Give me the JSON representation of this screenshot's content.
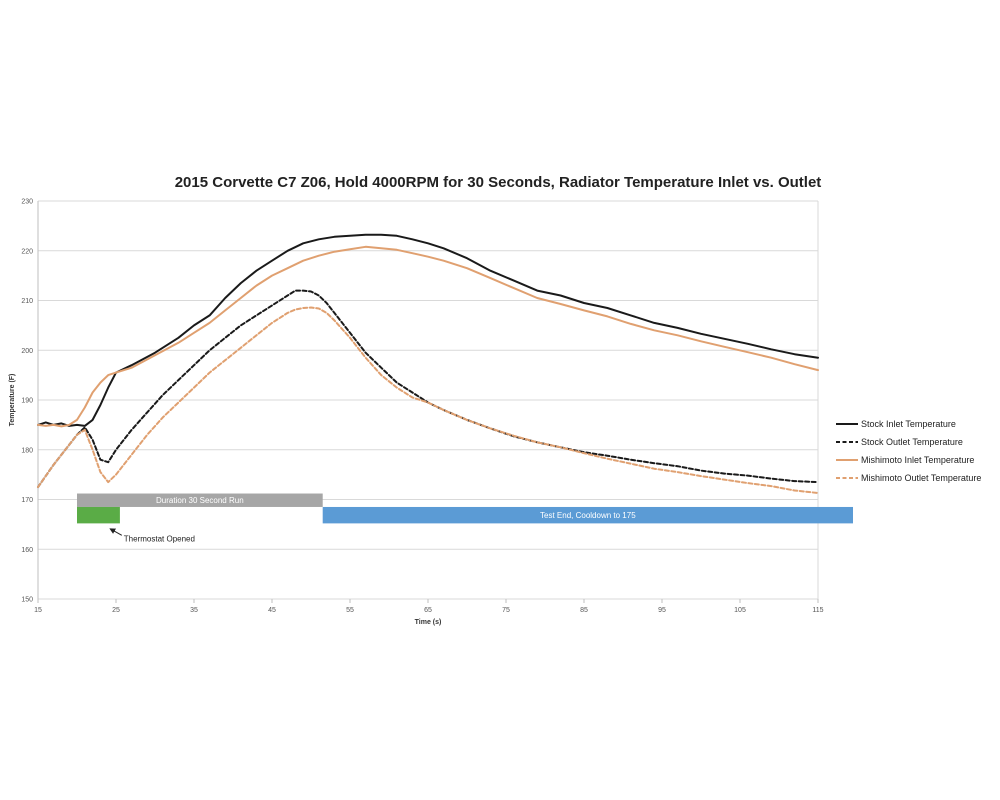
{
  "chart_data": {
    "type": "line",
    "title": "2015 Corvette C7 Z06, Hold 4000RPM for 30 Seconds, Radiator Temperature Inlet vs. Outlet",
    "xlabel": "Time (s)",
    "ylabel": "Temperature (F)",
    "xlim": [
      15,
      115
    ],
    "ylim": [
      150,
      230
    ],
    "xticks": [
      "15",
      "25",
      "35",
      "45",
      "55",
      "65",
      "75",
      "85",
      "95",
      "105",
      "115"
    ],
    "yticks": [
      "150",
      "160",
      "170",
      "180",
      "190",
      "200",
      "210",
      "220",
      "230"
    ],
    "grid": true,
    "legend_position": "right",
    "series": [
      {
        "name": "Stock Inlet Temperature",
        "color": "#1a1a1a",
        "dash": "solid",
        "x": [
          15,
          16,
          17,
          18,
          19,
          20,
          21,
          22,
          23,
          24,
          25,
          27,
          30,
          33,
          35,
          37,
          39,
          41,
          43,
          45,
          47,
          49,
          51,
          53,
          55,
          57,
          59,
          61,
          63,
          65,
          67,
          70,
          73,
          76,
          79,
          82,
          85,
          88,
          91,
          94,
          97,
          100,
          103,
          106,
          109,
          112,
          115
        ],
        "y": [
          185,
          185.5,
          185,
          185.3,
          184.8,
          185,
          184.8,
          186,
          189,
          192.5,
          195.5,
          197,
          199.5,
          202.5,
          205,
          207,
          210.5,
          213.5,
          216,
          218,
          220,
          221.5,
          222.3,
          222.8,
          223,
          223.2,
          223.2,
          223,
          222.3,
          221.5,
          220.5,
          218.5,
          216,
          214,
          212,
          211,
          209.5,
          208.5,
          207,
          205.5,
          204.5,
          203.3,
          202.3,
          201.3,
          200.2,
          199.2,
          198.5
        ]
      },
      {
        "name": "Stock Outlet Temperature",
        "color": "#1a1a1a",
        "dash": "dashed",
        "x": [
          15,
          17,
          19,
          20,
          21,
          22,
          23,
          24,
          25,
          27,
          29,
          31,
          33,
          35,
          37,
          39,
          41,
          43,
          45,
          47,
          48,
          49,
          50,
          51,
          52,
          53,
          55,
          57,
          59,
          61,
          63,
          65,
          67,
          70,
          73,
          76,
          79,
          82,
          85,
          88,
          91,
          94,
          97,
          100,
          103,
          106,
          109,
          112,
          115
        ],
        "y": [
          172.5,
          177,
          181,
          183,
          184.5,
          182,
          178,
          177.5,
          180,
          184,
          187.5,
          191,
          194,
          197,
          200,
          202.5,
          205,
          207,
          209,
          211,
          212,
          212,
          211.8,
          211,
          209.5,
          207.5,
          203.5,
          199.5,
          196.5,
          193.5,
          191.5,
          189.5,
          188,
          186,
          184.3,
          182.7,
          181.5,
          180.5,
          179.5,
          178.8,
          178,
          177.3,
          176.7,
          175.8,
          175.2,
          174.8,
          174.2,
          173.7,
          173.5
        ]
      },
      {
        "name": "Mishimoto Inlet Temperature",
        "color": "#e0a070",
        "dash": "solid",
        "x": [
          15,
          16,
          17,
          18,
          19,
          20,
          21,
          22,
          23,
          24,
          25,
          27,
          30,
          33,
          35,
          37,
          39,
          41,
          43,
          45,
          47,
          49,
          51,
          53,
          55,
          57,
          59,
          61,
          63,
          65,
          67,
          70,
          73,
          76,
          79,
          82,
          85,
          88,
          91,
          94,
          97,
          100,
          103,
          106,
          109,
          112,
          115
        ],
        "y": [
          185,
          184.8,
          185,
          184.7,
          185,
          186,
          188.5,
          191.5,
          193.5,
          195,
          195.5,
          196.5,
          199,
          201.5,
          203.5,
          205.5,
          208,
          210.5,
          213,
          215,
          216.5,
          218,
          219,
          219.8,
          220.3,
          220.8,
          220.5,
          220.2,
          219.5,
          218.8,
          218,
          216.5,
          214.5,
          212.5,
          210.5,
          209.3,
          208,
          206.8,
          205.3,
          204,
          203,
          201.8,
          200.7,
          199.6,
          198.5,
          197.2,
          196
        ]
      },
      {
        "name": "Mishimoto Outlet Temperature",
        "color": "#e0a070",
        "dash": "dashed",
        "x": [
          15,
          17,
          19,
          20,
          21,
          22,
          23,
          24,
          25,
          27,
          29,
          31,
          33,
          35,
          37,
          39,
          41,
          43,
          45,
          47,
          48,
          49,
          50,
          51,
          52,
          53,
          55,
          57,
          59,
          61,
          63,
          65,
          67,
          70,
          73,
          76,
          79,
          82,
          85,
          88,
          91,
          94,
          97,
          100,
          103,
          106,
          109,
          112,
          115
        ],
        "y": [
          172.5,
          177,
          181,
          183,
          184,
          180,
          175.5,
          173.5,
          175,
          179,
          183,
          186.5,
          189.5,
          192.5,
          195.5,
          198,
          200.5,
          203,
          205.5,
          207.5,
          208.2,
          208.5,
          208.6,
          208.4,
          207.5,
          206,
          202.5,
          198.5,
          195,
          192.5,
          190.5,
          189.5,
          188,
          186,
          184.3,
          182.8,
          181.5,
          180.5,
          179.3,
          178.2,
          177.2,
          176.2,
          175.5,
          174.7,
          174,
          173.3,
          172.7,
          171.8,
          171.3
        ]
      }
    ],
    "bars": [
      {
        "label": "Duration 30 Second Run",
        "color": "#a6a6a6",
        "x_start": 20,
        "x_end": 51.5,
        "y_bottom": 168.5,
        "y_top": 171.2,
        "show_label": true
      },
      {
        "label": "Thermostat Opened",
        "color": "#5aac46",
        "x_start": 20,
        "x_end": 25.5,
        "y_bottom": 165.2,
        "y_top": 168.5,
        "show_label": false
      },
      {
        "label": "Test End, Cooldown to 175",
        "color": "#5b9bd5",
        "x_start": 51.5,
        "x_end": 120,
        "y_bottom": 165.2,
        "y_top": 168.5,
        "show_label": true
      }
    ],
    "annotations": [
      {
        "text": "Thermostat Opened",
        "arrow_to_x": 24,
        "arrow_to_y": 164.5,
        "text_x": 26,
        "text_y": 162
      }
    ]
  }
}
